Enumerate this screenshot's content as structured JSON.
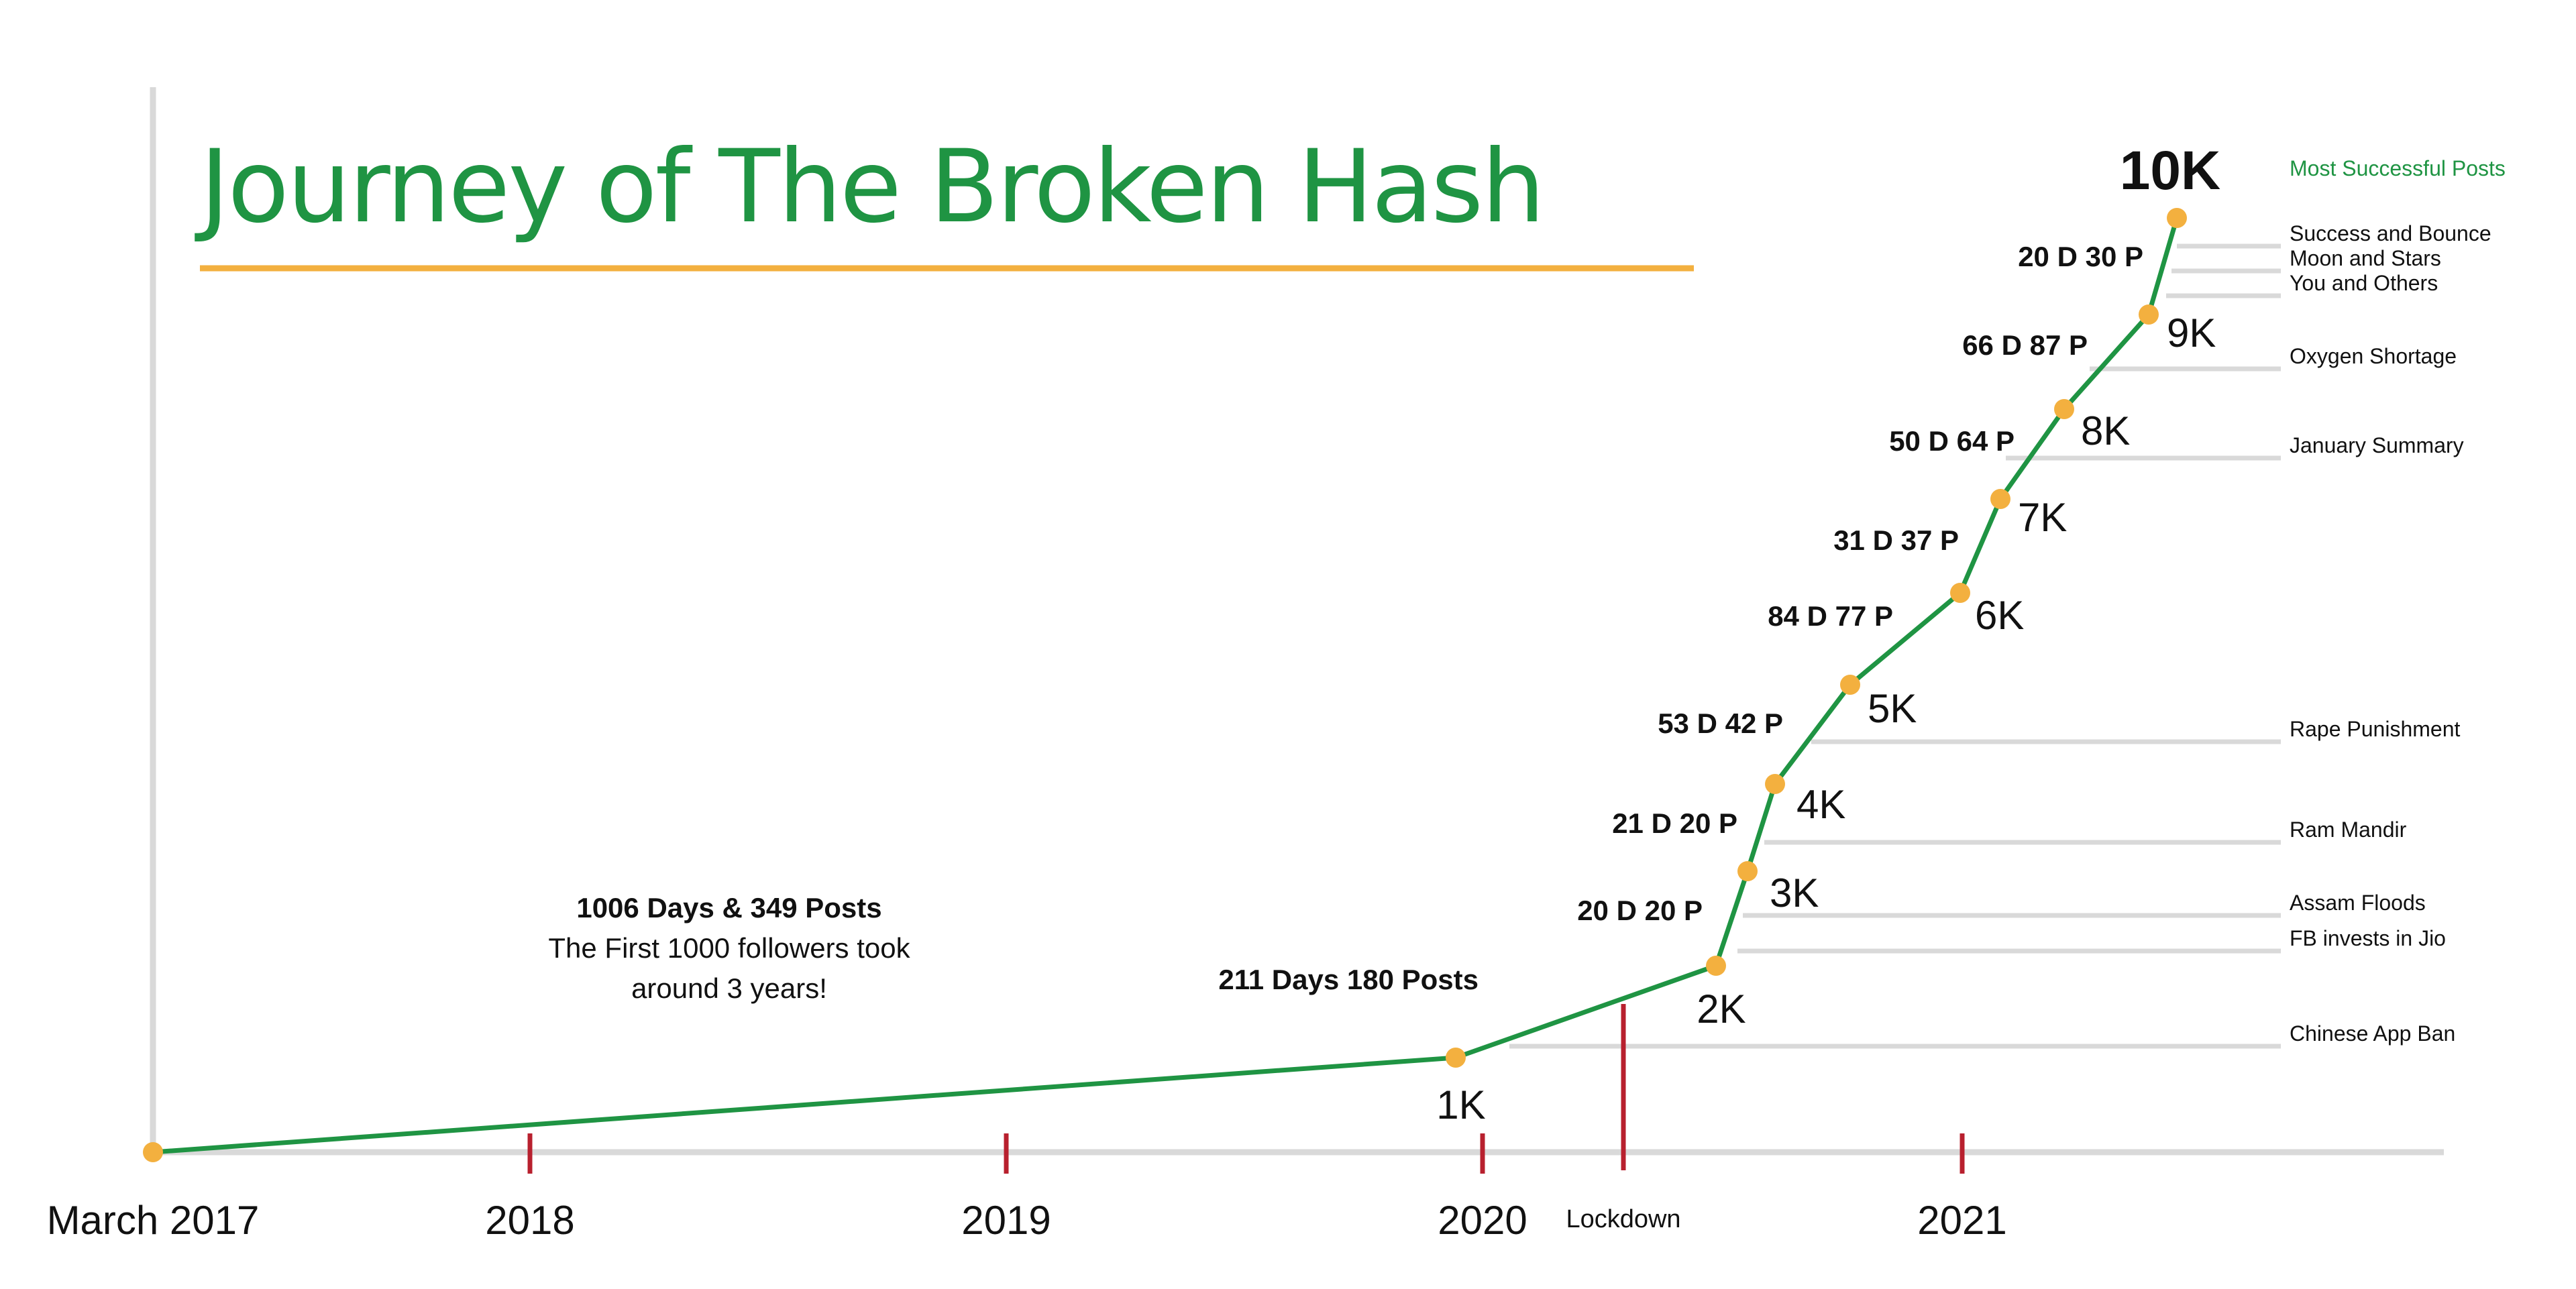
{
  "title": "Journey of The Broken Hash",
  "colors": {
    "title": "#1f9443",
    "underline": "#f3b03f",
    "line": "#1f9443",
    "point": "#f3b03f",
    "axis": "#d9d9d9",
    "tick": "#b8202e",
    "event_line": "#d9d9d9"
  },
  "note": {
    "bold": "1006 Days & 349 Posts",
    "line1": "The First 1000 followers took",
    "line2": "around 3 years!"
  },
  "legend_label": "Most Successful Posts",
  "chart_data": {
    "type": "line",
    "title": "Journey of The Broken Hash",
    "x_axis": {
      "start_label": "March 2017",
      "ticks": [
        "2018",
        "2019",
        "2020",
        "Lockdown",
        "2021"
      ]
    },
    "points": [
      {
        "label": "",
        "date": "2017-03",
        "followers": 0
      },
      {
        "label": "1K",
        "date": "2020-01",
        "followers": 1000
      },
      {
        "label": "2K",
        "date": "2020-08",
        "followers": 2000
      },
      {
        "label": "3K",
        "date": "2020-08",
        "followers": 3000
      },
      {
        "label": "4K",
        "date": "2020-09",
        "followers": 4000
      },
      {
        "label": "5K",
        "date": "2020-10",
        "followers": 5000
      },
      {
        "label": "6K",
        "date": "2021-01",
        "followers": 6000
      },
      {
        "label": "7K",
        "date": "2021-02",
        "followers": 7000
      },
      {
        "label": "8K",
        "date": "2021-04",
        "followers": 8000
      },
      {
        "label": "9K",
        "date": "2021-06",
        "followers": 9000
      },
      {
        "label": "10K",
        "date": "2021-07",
        "followers": 10000
      }
    ],
    "segments": [
      {
        "from": "0",
        "to": "1K",
        "label": "1006 Days & 349 Posts"
      },
      {
        "from": "1K",
        "to": "2K",
        "label": "211 Days 180 Posts"
      },
      {
        "from": "2K",
        "to": "3K",
        "label": "20 D 20 P"
      },
      {
        "from": "3K",
        "to": "4K",
        "label": "21 D 20 P"
      },
      {
        "from": "4K",
        "to": "5K",
        "label": "53 D 42 P"
      },
      {
        "from": "5K",
        "to": "6K",
        "label": "84 D 77 P"
      },
      {
        "from": "6K",
        "to": "7K",
        "label": "31 D 37 P"
      },
      {
        "from": "7K",
        "to": "8K",
        "label": "50 D 64 P"
      },
      {
        "from": "8K",
        "to": "9K",
        "label": "66 D 87 P"
      },
      {
        "from": "9K",
        "to": "10K",
        "label": "20 D 30 P"
      }
    ],
    "events_title": "Most Successful Posts",
    "events": [
      "Success and Bounce",
      "Moon and Stars",
      "You and Others",
      "Oxygen Shortage",
      "January Summary",
      "Rape Punishment",
      "Ram Mandir",
      "Assam Floods",
      "FB invests in Jio",
      "Chinese App Ban"
    ]
  }
}
